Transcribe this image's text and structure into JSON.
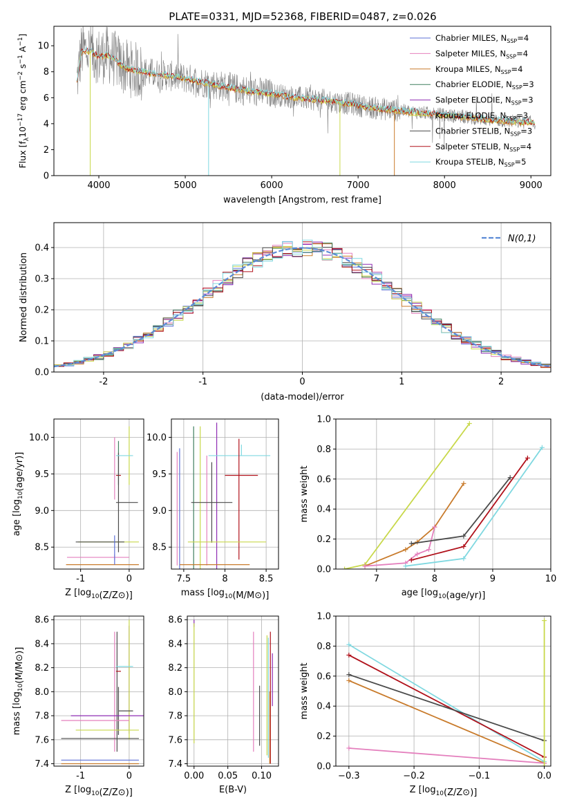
{
  "title": "PLATE=0331, MJD=52368, FIBERID=0487, z=0.026",
  "colors": {
    "Chabrier MILES": "#5b6fd6",
    "Salpeter MILES": "#e47fbd",
    "Kroupa MILES": "#c87a2a",
    "Chabrier ELODIE": "#3f7f5f",
    "Salpeter ELODIE": "#8e2bb3",
    "Kroupa ELODIE": "#c8d84a",
    "Chabrier STELIB": "#4a4a4a",
    "Salpeter STELIB": "#b0101a",
    "Kroupa STELIB": "#7fd8e0",
    "data": "#808080",
    "gaussian": "#5b8bd6"
  },
  "chart_data": [
    {
      "panel": "spectrum",
      "type": "line",
      "xlabel": "wavelength [Angstrom, rest frame]",
      "ylabel": "Flux [f_λ 10^-17 erg cm^-2 s^-1 A^-1]",
      "xlim": [
        3480,
        9230
      ],
      "ylim": [
        0,
        11.5
      ],
      "xticks": [
        4000,
        5000,
        6000,
        7000,
        8000,
        9000
      ],
      "yticks": [
        0,
        2,
        4,
        6,
        8,
        10
      ],
      "legend_position": "upper-right",
      "legend": [
        {
          "name": "Chabrier MILES",
          "nssp": "4"
        },
        {
          "name": "Salpeter MILES",
          "nssp": "4"
        },
        {
          "name": "Kroupa MILES",
          "nssp": "4"
        },
        {
          "name": "Chabrier ELODIE",
          "nssp": "3"
        },
        {
          "name": "Salpeter ELODIE",
          "nssp": "3"
        },
        {
          "name": "Kroupa ELODIE",
          "nssp": "3"
        },
        {
          "name": "Chabrier STELIB",
          "nssp": "3"
        },
        {
          "name": "Salpeter STELIB",
          "nssp": "4"
        },
        {
          "name": "Kroupa STELIB",
          "nssp": "5"
        }
      ],
      "continuum": {
        "x": [
          3740,
          3800,
          3900,
          4000,
          4100,
          4200,
          4300,
          4500,
          4800,
          5000,
          5200,
          5500,
          5800,
          6000,
          6300,
          6600,
          6900,
          7200,
          7500,
          7800,
          8100,
          8400,
          8700,
          9000
        ],
        "y": [
          7.0,
          9.6,
          9.6,
          9.2,
          9.3,
          8.9,
          8.3,
          8.0,
          7.7,
          7.5,
          7.2,
          6.8,
          6.45,
          6.3,
          6.0,
          5.8,
          5.55,
          5.2,
          5.0,
          4.8,
          4.6,
          4.4,
          4.2,
          4.1
        ]
      }
    },
    {
      "panel": "residuals",
      "type": "line",
      "xlabel": "(data-model)/error",
      "ylabel": "Normed distribution",
      "xlim": [
        -2.5,
        2.5
      ],
      "ylim": [
        0,
        0.48
      ],
      "xticks": [
        -2,
        -1,
        0,
        1,
        2
      ],
      "yticks": [
        0.0,
        0.1,
        0.2,
        0.3,
        0.4
      ],
      "gaussian_label": "N(0,1)",
      "bin_width": 0.1
    },
    {
      "panel": "age-vs-Z",
      "type": "scatter",
      "xlabel": "Z [log10(Z/Z⊙)]",
      "ylabel": "age [log10(age/yr)]",
      "xlim": [
        -1.55,
        0.3
      ],
      "ylim": [
        8.2,
        10.25
      ],
      "xticks": [
        -1,
        0
      ],
      "yticks": [
        8.5,
        9.0,
        9.5,
        10.0
      ],
      "errorbars": [
        {
          "series": "Salpeter MILES",
          "x": -0.3,
          "y": 9.55,
          "xerr": [
            0,
            0
          ],
          "yerr": [
            0.4,
            0.45
          ]
        },
        {
          "series": "Salpeter MILES",
          "x": -0.3,
          "y": 8.36,
          "xerr": [
            0.98,
            0.3
          ],
          "yerr": [
            0.04,
            0.04
          ]
        },
        {
          "series": "Chabrier ELODIE",
          "x": -0.22,
          "y": 9.65,
          "xerr": [
            0,
            0
          ],
          "yerr": [
            0.3,
            0.3
          ]
        },
        {
          "series": "Kroupa ELODIE",
          "x": 0.0,
          "y": 9.75,
          "xerr": [
            0,
            0
          ],
          "yerr": [
            0.4,
            0.4
          ]
        },
        {
          "series": "Salpeter STELIB",
          "x": -0.22,
          "y": 9.48,
          "xerr": [
            0.05,
            0.05
          ],
          "yerr": [
            0,
            0
          ]
        },
        {
          "series": "Chabrier STELIB",
          "x": -0.22,
          "y": 9.11,
          "xerr": [
            0.05,
            0.4
          ],
          "yerr": [
            0.68,
            0.68
          ]
        },
        {
          "series": "Kroupa STELIB",
          "x": -0.22,
          "y": 9.75,
          "xerr": [
            0.05,
            0.3
          ],
          "yerr": [
            0,
            0
          ]
        },
        {
          "series": "Kroupa ELODIE",
          "x": -0.95,
          "y": 8.57,
          "xerr": [
            0.1,
            1.15
          ],
          "yerr": [
            0,
            0
          ]
        },
        {
          "series": "Chabrier STELIB",
          "x": -0.6,
          "y": 8.57,
          "xerr": [
            0.5,
            0.5
          ],
          "yerr": [
            0,
            0
          ]
        },
        {
          "series": "Kroupa MILES",
          "x": -0.5,
          "y": 8.26,
          "xerr": [
            0.8,
            0.7
          ],
          "yerr": [
            0,
            0
          ]
        },
        {
          "series": "Chabrier MILES",
          "x": -0.3,
          "y": 8.26,
          "xerr": [
            0,
            0
          ],
          "yerr": [
            0,
            0.4
          ]
        }
      ]
    },
    {
      "panel": "age-vs-mass",
      "type": "scatter",
      "xlabel": "mass [log10(M/M⊙)]",
      "ylabel": "",
      "xlim": [
        7.35,
        8.65
      ],
      "ylim": [
        8.2,
        10.25
      ],
      "xticks": [
        7.5,
        8.0,
        8.5
      ],
      "yticks": [
        8.5,
        9.0,
        9.5,
        10.0
      ],
      "errorbars": [
        {
          "series": "Salpeter MILES",
          "x": 7.42,
          "y": 9.0,
          "xerr": [
            0,
            0
          ],
          "yerr": [
            0.75,
            0.8
          ]
        },
        {
          "series": "Chabrier MILES",
          "x": 7.45,
          "y": 9.0,
          "xerr": [
            0,
            0
          ],
          "yerr": [
            0.8,
            0.85
          ]
        },
        {
          "series": "Chabrier ELODIE",
          "x": 7.62,
          "y": 9.0,
          "xerr": [
            0,
            0
          ],
          "yerr": [
            1.15,
            1.15
          ]
        },
        {
          "series": "Kroupa ELODIE",
          "x": 7.7,
          "y": 9.0,
          "xerr": [
            0,
            0
          ],
          "yerr": [
            1.15,
            1.15
          ]
        },
        {
          "series": "Salpeter ELODIE",
          "x": 7.9,
          "y": 9.0,
          "xerr": [
            0,
            0
          ],
          "yerr": [
            1.2,
            1.2
          ]
        },
        {
          "series": "Salpeter MILES",
          "x": 7.78,
          "y": 9.0,
          "xerr": [
            0,
            0
          ],
          "yerr": [
            0.75,
            0.75
          ]
        },
        {
          "series": "Chabrier STELIB",
          "x": 7.84,
          "y": 9.11,
          "xerr": [
            0.25,
            0.25
          ],
          "yerr": [
            0.55,
            0.55
          ]
        },
        {
          "series": "Kroupa STELIB",
          "x": 8.2,
          "y": 9.75,
          "xerr": [
            0.4,
            0.35
          ],
          "yerr": [
            0,
            0.15
          ]
        },
        {
          "series": "Salpeter STELIB",
          "x": 8.17,
          "y": 9.48,
          "xerr": [
            0.17,
            0.23
          ],
          "yerr": [
            1.15,
            0.5
          ]
        },
        {
          "series": "Kroupa ELODIE",
          "x": 8.0,
          "y": 8.57,
          "xerr": [
            0.45,
            0.5
          ],
          "yerr": [
            0,
            0
          ]
        },
        {
          "series": "Kroupa MILES",
          "x": 7.85,
          "y": 8.26,
          "xerr": [
            0.4,
            0.45
          ],
          "yerr": [
            0,
            0
          ]
        }
      ]
    },
    {
      "panel": "cumulative-age",
      "type": "line",
      "xlabel": "age [log10(age/yr)]",
      "ylabel": "mass weight",
      "xlim": [
        6.3,
        10.0
      ],
      "ylim": [
        0,
        1.0
      ],
      "xticks": [
        7,
        8,
        9,
        10
      ],
      "yticks": [
        0.0,
        0.2,
        0.4,
        0.6,
        0.8,
        1.0
      ],
      "series": [
        {
          "name": "Kroupa ELODIE",
          "x": [
            6.45,
            6.8,
            8.6
          ],
          "y": [
            0.0,
            0.03,
            0.97
          ]
        },
        {
          "name": "Kroupa MILES",
          "x": [
            6.8,
            7.5,
            7.7,
            8.0,
            8.5
          ],
          "y": [
            0.02,
            0.13,
            0.18,
            0.28,
            0.57
          ]
        },
        {
          "name": "Salpeter MILES",
          "x": [
            6.8,
            7.5,
            7.7,
            7.9,
            8.0
          ],
          "y": [
            0.02,
            0.04,
            0.1,
            0.13,
            0.28
          ]
        },
        {
          "name": "Chabrier STELIB",
          "x": [
            7.6,
            8.5,
            9.3
          ],
          "y": [
            0.17,
            0.22,
            0.61
          ]
        },
        {
          "name": "Salpeter STELIB",
          "x": [
            7.6,
            8.5,
            9.6
          ],
          "y": [
            0.06,
            0.15,
            0.74
          ]
        },
        {
          "name": "Kroupa STELIB",
          "x": [
            7.5,
            8.5,
            9.85
          ],
          "y": [
            0.02,
            0.07,
            0.81
          ]
        }
      ]
    },
    {
      "panel": "mass-vs-Z",
      "type": "scatter",
      "xlabel": "Z [log10(Z/Z⊙)]",
      "ylabel": "mass [log10(M/M⊙)]",
      "xlim": [
        -1.55,
        0.3
      ],
      "ylim": [
        7.38,
        8.63
      ],
      "xticks": [
        -1,
        0
      ],
      "yticks": [
        7.4,
        7.6,
        7.8,
        8.0,
        8.2,
        8.4,
        8.6
      ],
      "errorbars": [
        {
          "series": "Salpeter MILES",
          "x": -0.3,
          "y": 8.0,
          "xerr": [
            0,
            0
          ],
          "yerr": [
            0.5,
            0.5
          ]
        },
        {
          "series": "Chabrier STELIB",
          "x": -0.25,
          "y": 8.0,
          "xerr": [
            0,
            0
          ],
          "yerr": [
            0.5,
            0.5
          ]
        },
        {
          "series": "Salpeter ELODIE",
          "x": 0.0,
          "y": 8.1,
          "xerr": [
            0,
            0
          ],
          "yerr": [
            0.45,
            0.45
          ]
        },
        {
          "series": "Kroupa ELODIE",
          "x": 0.0,
          "y": 8.1,
          "xerr": [
            0,
            0
          ],
          "yerr": [
            0.5,
            0.5
          ]
        },
        {
          "series": "Salpeter STELIB",
          "x": -0.22,
          "y": 8.17,
          "xerr": [
            0.05,
            0.05
          ],
          "yerr": [
            0,
            0
          ]
        },
        {
          "series": "Kroupa STELIB",
          "x": -0.22,
          "y": 8.21,
          "xerr": [
            0.05,
            0.3
          ],
          "yerr": [
            0,
            0
          ]
        },
        {
          "series": "Chabrier STELIB",
          "x": -0.22,
          "y": 7.84,
          "xerr": [
            0,
            0.3
          ],
          "yerr": [
            0.2,
            0.2
          ]
        },
        {
          "series": "Salpeter ELODIE",
          "x": -0.6,
          "y": 7.8,
          "xerr": [
            0.6,
            0.9
          ],
          "yerr": [
            0,
            0
          ]
        },
        {
          "series": "Salpeter MILES",
          "x": -0.8,
          "y": 7.76,
          "xerr": [
            0.6,
            0.8
          ],
          "yerr": [
            0,
            0
          ]
        },
        {
          "series": "Kroupa ELODIE",
          "x": -0.45,
          "y": 7.68,
          "xerr": [
            0.65,
            0.65
          ],
          "yerr": [
            0,
            0
          ]
        },
        {
          "series": "Chabrier STELIB",
          "x": -0.6,
          "y": 7.61,
          "xerr": [
            0.8,
            0.8
          ],
          "yerr": [
            0,
            0
          ]
        },
        {
          "series": "Chabrier MILES",
          "x": -0.6,
          "y": 7.43,
          "xerr": [
            0.8,
            0.8
          ],
          "yerr": [
            0,
            0
          ]
        },
        {
          "series": "Kroupa MILES",
          "x": -0.6,
          "y": 7.4,
          "xerr": [
            0.8,
            0.8
          ],
          "yerr": [
            0,
            0
          ]
        }
      ]
    },
    {
      "panel": "mass-vs-EBV",
      "type": "scatter",
      "xlabel": "E(B-V)",
      "ylabel": "",
      "xlim": [
        -0.01,
        0.125
      ],
      "ylim": [
        7.38,
        8.63
      ],
      "xticks": [
        0.0,
        0.05,
        0.1
      ],
      "xticklabels": [
        "0.00",
        "0.05",
        "0.10"
      ],
      "yticks": [
        7.4,
        7.6,
        7.8,
        8.0,
        8.2,
        8.4,
        8.6
      ],
      "errorbars": [
        {
          "series": "Salpeter ELODIE",
          "x": 0.0,
          "y": 8.57,
          "xerr": [
            0,
            0
          ],
          "yerr": [
            0.03,
            0.03
          ]
        },
        {
          "series": "Kroupa ELODIE",
          "x": 0.0,
          "y": 8.07,
          "xerr": [
            0,
            0
          ],
          "yerr": [
            0.5,
            0.5
          ]
        },
        {
          "series": "Salpeter MILES",
          "x": 0.088,
          "y": 8.0,
          "xerr": [
            0,
            0
          ],
          "yerr": [
            0.5,
            0.5
          ]
        },
        {
          "series": "Chabrier STELIB",
          "x": 0.097,
          "y": 7.8,
          "xerr": [
            0,
            0
          ],
          "yerr": [
            0.25,
            0.25
          ]
        },
        {
          "series": "Kroupa ELODIE",
          "x": 0.108,
          "y": 7.97,
          "xerr": [
            0,
            0
          ],
          "yerr": [
            0.5,
            0.5
          ]
        },
        {
          "series": "Kroupa STELIB",
          "x": 0.11,
          "y": 7.95,
          "xerr": [
            0,
            0
          ],
          "yerr": [
            0.5,
            0.5
          ]
        },
        {
          "series": "Salpeter STELIB",
          "x": 0.113,
          "y": 7.95,
          "xerr": [
            0,
            0
          ],
          "yerr": [
            0.55,
            0.55
          ]
        },
        {
          "series": "Kroupa MILES",
          "x": 0.112,
          "y": 7.7,
          "xerr": [
            0,
            0
          ],
          "yerr": [
            0.3,
            0.3
          ]
        },
        {
          "series": "Salpeter ELODIE",
          "x": 0.116,
          "y": 8.1,
          "xerr": [
            0,
            0
          ],
          "yerr": [
            0.22,
            0.22
          ]
        }
      ]
    },
    {
      "panel": "cumulative-Z",
      "type": "line",
      "xlabel": "Z [log10(Z/Z⊙)]",
      "ylabel": "mass weight",
      "xlim": [
        -0.32,
        0.01
      ],
      "ylim": [
        0,
        1.0
      ],
      "xticks": [
        -0.3,
        -0.2,
        -0.1,
        0.0
      ],
      "xticklabels": [
        "−0.3",
        "−0.2",
        "−0.1",
        "0.0"
      ],
      "yticks": [
        0.0,
        0.2,
        0.4,
        0.6,
        0.8,
        1.0
      ],
      "series": [
        {
          "name": "Kroupa STELIB",
          "x": [
            -0.3,
            0.0
          ],
          "y": [
            0.81,
            0.03
          ]
        },
        {
          "name": "Salpeter STELIB",
          "x": [
            -0.3,
            0.0
          ],
          "y": [
            0.74,
            0.06
          ]
        },
        {
          "name": "Chabrier STELIB",
          "x": [
            -0.3,
            0.0
          ],
          "y": [
            0.61,
            0.17
          ]
        },
        {
          "name": "Kroupa MILES",
          "x": [
            -0.3,
            0.0
          ],
          "y": [
            0.57,
            0.02
          ]
        },
        {
          "name": "Salpeter MILES",
          "x": [
            -0.3,
            0.0
          ],
          "y": [
            0.12,
            0.02
          ]
        },
        {
          "name": "Kroupa ELODIE",
          "x": [
            0.0,
            0.0
          ],
          "y": [
            0.0,
            0.97
          ]
        }
      ]
    }
  ]
}
